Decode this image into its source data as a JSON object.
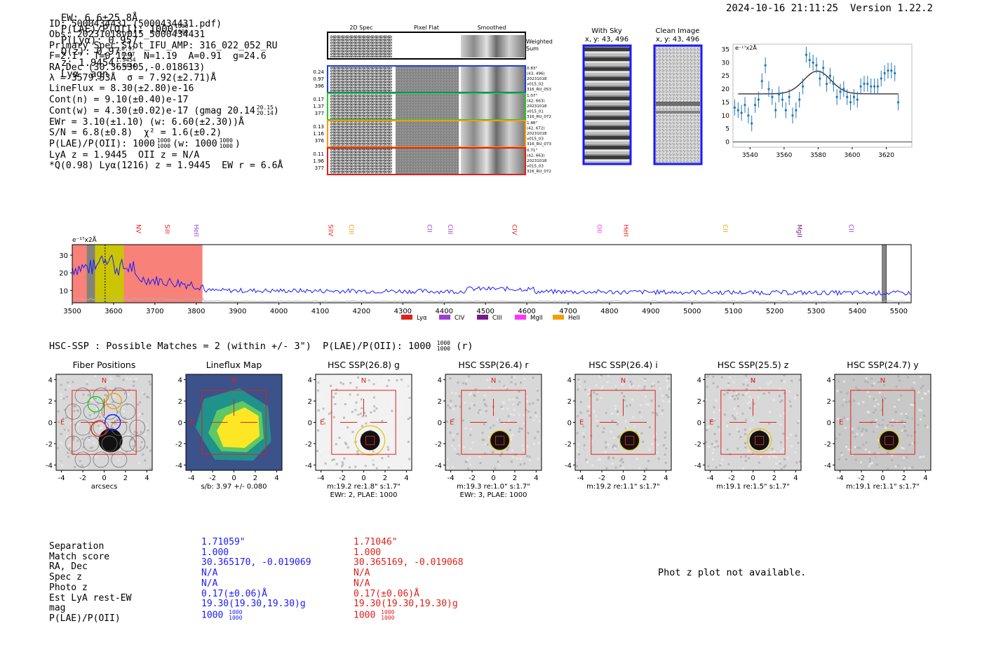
{
  "header": {
    "line": "EW: 6.6±25.8Å  P(LAE)/P(OII): 1000 1000/1000  P(Lyα): 0.957  Q(z): 0.97 0.97/0.97  z: 1.9454 1.9454/1.9454 Lyα  agn",
    "ew": "EW: 6.6±25.8Å",
    "plae": "P(LAE)/P(OII): 1000",
    "plae_sup": "1000",
    "plae_sub": "1000",
    "plya": "P(Lyα): 0.957",
    "qz": "Q(z): 0.97",
    "qz_sup": "0.97",
    "qz_sub": "0.97",
    "z": "z: 1.9454",
    "z_sup": "1.9454",
    "z_sub": "1.9454",
    "line_id": "Lyα  agn",
    "datetime": "2024-10-16 21:11:25",
    "version": "Version 1.22.2"
  },
  "info": {
    "lines": [
      "ID: 5000434431 (5000434431.pdf)",
      "Obs: 20231018v015_5000434431",
      "Primary Spec_Slot_IFU_AMP: 316_022_052_RU",
      "F=2.1\"  T=0.129  N=1.19  A=0.91  g=24.6",
      "RA,Dec (30.365305,-0.018613)",
      "λ = 3579.53Å  σ = 7.92(±2.71)Å",
      "LineFlux = 8.30(±2.80)e-16",
      "Cont(n) = 9.10(±0.40)e-17"
    ],
    "contw": "Cont(w) = 4.30(±0.02)e-17 (gmag 20.14",
    "contw_sup": "20.15",
    "contw_sub": "20.14",
    "contw_end": ")",
    "ewr": "EWr = 3.10(±1.10) (w: 6.60(±2.30))Å",
    "sn": "S/N = 6.8(±0.8)  χ² = 1.6(±0.2)",
    "plae_line": "P(LAE)/P(OII): 1000",
    "plae_line_mid": "(w: 1000",
    "plae_line_end": ")",
    "frac_top": "1000",
    "frac_bot": "1000",
    "lya_line": "LyA z = 1.9445  OII z = N/A",
    "q_line": "*Q(0.98) Lyα(1216) z = 1.9445  EW r = 6.6Å"
  },
  "spec2d": {
    "col_titles": [
      "2D Spec",
      "Pixel Flat",
      "Smoothed"
    ],
    "weighted": "Weighted Sum",
    "rows": [
      {
        "left": [
          "0.24",
          "0.97",
          "396"
        ],
        "right": [
          "0.83\"",
          "(43, 496)",
          "20231018",
          "v015_02",
          "316_RU_053"
        ],
        "color": "#1f3fd6"
      },
      {
        "left": [
          "0.17",
          "1.37",
          "377"
        ],
        "right": [
          "1.07\"",
          "(42, 663)",
          "20231018",
          "v015_01",
          "316_RU_072"
        ],
        "color": "#22cc22"
      },
      {
        "left": [
          "0.13",
          "1.16",
          "376"
        ],
        "right": [
          "1.88\"",
          "(42, 672)",
          "20231018",
          "v015_03",
          "316_RU_073"
        ],
        "color": "#ff9900"
      },
      {
        "left": [
          "0.11",
          "1.96",
          "377"
        ],
        "right": [
          "0.71\"",
          "(42, 663)",
          "20231018",
          "v015_03",
          "316_RU_072"
        ],
        "color": "#e0201a"
      }
    ]
  },
  "sky": {
    "with_sky_title": "With Sky",
    "with_sky_xy": "x, y: 43, 496",
    "clean_title": "Clean Image",
    "clean_xy": "x, y: 43, 496"
  },
  "colors": {
    "blue": "#1a1aff",
    "red": "#e0201a",
    "orange": "#f2a000",
    "purple": "#9a3fd6",
    "darkpurple": "#7a1a8a",
    "magenta": "#ff33ff",
    "olive": "#c8c800",
    "salmon": "#f87a72",
    "gray": "#808080"
  },
  "chart_data": [
    {
      "type": "scatter",
      "title": "",
      "ylabel": "e⁻¹⁷x2Å",
      "xlim": [
        3530,
        3635
      ],
      "ylim": [
        -2,
        37
      ],
      "xticks": [
        "3540",
        "3560",
        "3580",
        "3600",
        "3620"
      ],
      "yticks": [
        "0",
        "5",
        "10",
        "15",
        "20",
        "25",
        "30",
        "35"
      ],
      "points": {
        "x": [
          3531,
          3533,
          3535,
          3537,
          3539,
          3541,
          3543,
          3545,
          3547,
          3549,
          3551,
          3553,
          3555,
          3557,
          3559,
          3561,
          3563,
          3565,
          3567,
          3569,
          3571,
          3573,
          3575,
          3577,
          3579,
          3581,
          3583,
          3585,
          3587,
          3589,
          3591,
          3593,
          3595,
          3597,
          3599,
          3601,
          3603,
          3605,
          3607,
          3609,
          3611,
          3613,
          3615,
          3617,
          3619,
          3621,
          3623,
          3625,
          3627
        ],
        "y": [
          13,
          12,
          11,
          14,
          10,
          7,
          14,
          16,
          23,
          29,
          20,
          17,
          12,
          18,
          16,
          12,
          17,
          10,
          12,
          16,
          21,
          33,
          31,
          30,
          29,
          24,
          28,
          22,
          25,
          22,
          17,
          19,
          20,
          17,
          15,
          17,
          16,
          21,
          22,
          22,
          21,
          21,
          21,
          24,
          26,
          27,
          27,
          26,
          15
        ],
        "err": [
          3,
          3,
          3,
          3,
          3,
          3,
          3,
          3,
          3,
          3,
          3,
          3,
          3,
          3,
          3,
          3,
          3,
          3,
          3,
          3,
          3,
          3,
          3,
          3,
          3,
          3,
          3,
          3,
          3,
          3,
          3,
          3,
          3,
          3,
          3,
          3,
          3,
          3,
          3,
          3,
          3,
          3,
          3,
          3,
          3,
          3,
          3,
          3,
          3
        ]
      },
      "model": {
        "center": 3579.5,
        "sigma": 7.92,
        "amplitude": 8.6,
        "continuum": 18.2,
        "xrange": [
          3533,
          3627
        ]
      }
    },
    {
      "type": "line",
      "ylabel": "e⁻¹⁷x2Å",
      "xlim": [
        3500,
        5530
      ],
      "ylim": [
        3,
        36
      ],
      "xticks": [
        "3500",
        "3600",
        "3700",
        "3800",
        "3900",
        "4000",
        "4100",
        "4200",
        "4300",
        "4400",
        "4500",
        "4600",
        "4700",
        "4800",
        "4900",
        "5000",
        "5100",
        "5200",
        "5300",
        "5400",
        "5500"
      ],
      "yticks": [
        "10",
        "20",
        "30"
      ],
      "line_labels": [
        {
          "name": "NV",
          "x": 3650,
          "color": "#e0201a"
        },
        {
          "name": "SiII",
          "x": 3720,
          "color": "#e0201a"
        },
        {
          "name": "HeII",
          "x": 3790,
          "color": "#9a3fd6"
        },
        {
          "name": "SiIV",
          "x": 4115,
          "color": "#e0201a"
        },
        {
          "name": "CIII",
          "x": 4165,
          "color": "#f2a000"
        },
        {
          "name": "CII",
          "x": 4355,
          "color": "#9a3fd6"
        },
        {
          "name": "CIII",
          "x": 4405,
          "color": "#9a3fd6"
        },
        {
          "name": "CIV",
          "x": 4560,
          "color": "#e0201a"
        },
        {
          "name": "OII",
          "x": 4765,
          "color": "#ff33ff"
        },
        {
          "name": "HeII",
          "x": 4830,
          "color": "#e0201a"
        },
        {
          "name": "CII",
          "x": 5070,
          "color": "#f2a000"
        },
        {
          "name": "MgII",
          "x": 5250,
          "color": "#7a1a8a"
        },
        {
          "name": "CII",
          "x": 5375,
          "color": "#9a3fd6"
        }
      ],
      "legend": [
        {
          "name": "Lyα",
          "color": "#e0201a"
        },
        {
          "name": "CIV",
          "color": "#9a3fd6"
        },
        {
          "name": "CIII",
          "color": "#7a1a8a"
        },
        {
          "name": "MgII",
          "color": "#ff33ff"
        },
        {
          "name": "HeII",
          "color": "#f2a000"
        }
      ],
      "shaded_regions": [
        {
          "from": 3500,
          "to": 3815,
          "color": "#f87a72"
        },
        {
          "from": 3535,
          "to": 3625,
          "color": "#c8c800"
        },
        {
          "from": 3535,
          "to": 3555,
          "color": "#808080"
        },
        {
          "from": 5460,
          "to": 5470,
          "color": "#808080"
        }
      ],
      "line_marker": 3579.5,
      "line_level_stats": {
        "base": 10,
        "descend_to": 8.5
      }
    }
  ],
  "hsc": {
    "title": "HSC-SSP : Possible Matches = 2 (within +/- 3\")  P(LAE)/P(OII): 1000",
    "frac_top": "1000",
    "frac_bot": "1000",
    "title_end": "(r)",
    "panels": [
      {
        "title": "Fiber Positions",
        "sub1": "arcsecs",
        "sub2": ""
      },
      {
        "title": "Lineflux Map",
        "sub1": "s/b: 3.97 +/- 0.080",
        "sub2": ""
      },
      {
        "title": "HSC SSP(26.8) g",
        "sub1": "m:19.2  re:1.8\"  s:1.7\"",
        "sub2": "EWr: 2, PLAE: 1000"
      },
      {
        "title": "HSC SSP(26.4) r",
        "sub1": "m:19.3  re:1.0\"  s:1.7\"",
        "sub2": "EWr: 3, PLAE: 1000"
      },
      {
        "title": "HSC SSP(26.4) i",
        "sub1": "m:19.2  re:1.1\"  s:1.7\"",
        "sub2": ""
      },
      {
        "title": "HSC SSP(25.5) z",
        "sub1": "m:19.1  re:1.5\"  s:1.7\"",
        "sub2": ""
      },
      {
        "title": "HSC SSP(24.7) y",
        "sub1": "m:19.1  re:1.1\"  s:1.7\"",
        "sub2": ""
      }
    ],
    "axis_ticks": [
      "-4",
      "-2",
      "0",
      "2",
      "4"
    ],
    "n_label": "N",
    "e_label": "E"
  },
  "matches": {
    "labels": [
      "Separation",
      "Match score",
      "RA, Dec",
      "Spec z",
      "Photo z",
      "Est LyA rest-EW",
      "mag",
      "P(LAE)/P(OII)"
    ],
    "blue": [
      "1.71059\"",
      "1.000",
      "30.365170, -0.019069",
      "N/A",
      "N/A",
      "0.17(±0.06)Å",
      "19.30(19.30,19.30)g",
      "1000"
    ],
    "red": [
      "1.71046\"",
      "1.000",
      "30.365169, -0.019068",
      "N/A",
      "N/A",
      "0.17(±0.06)Å",
      "19.30(19.30,19.30)g",
      "1000"
    ],
    "frac_top": "1000",
    "frac_bot": "1000",
    "photz_note": "Phot z plot not available."
  }
}
